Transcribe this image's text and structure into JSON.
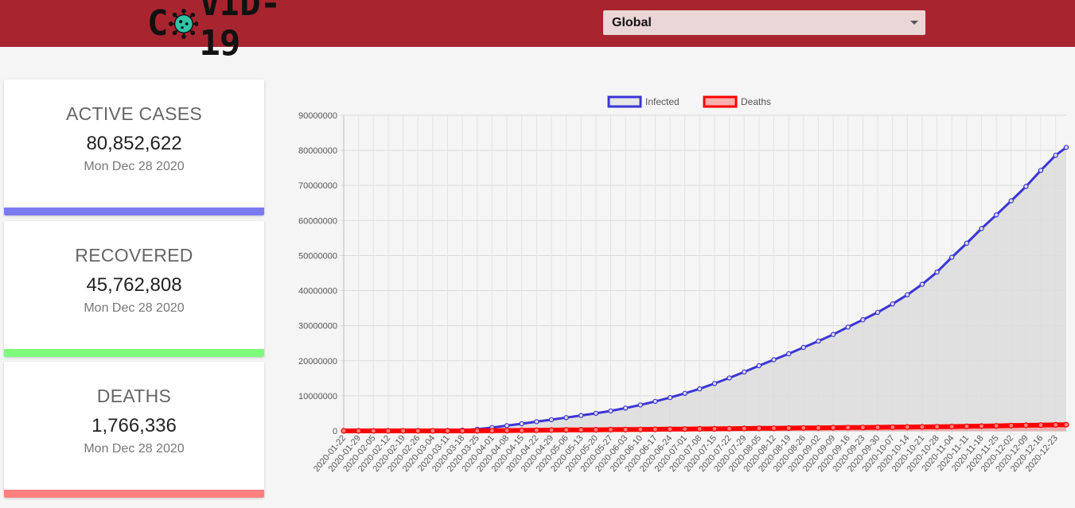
{
  "header": {
    "logo_text_left": "C",
    "logo_text_right": "VID-19",
    "logo_icon": "virus-icon",
    "region_select": {
      "value": "Global",
      "icon": "chevron-down-icon"
    }
  },
  "cards": [
    {
      "title": "ACTIVE CASES",
      "value": "80,852,622",
      "date": "Mon Dec 28 2020",
      "bar_color": "#7b7bf0"
    },
    {
      "title": "RECOVERED",
      "value": "45,762,808",
      "date": "Mon Dec 28 2020",
      "bar_color": "#7dfb7d"
    },
    {
      "title": "DEATHS",
      "value": "1,766,336",
      "date": "Mon Dec 28 2020",
      "bar_color": "#ff7f7f"
    }
  ],
  "chart_data": {
    "type": "line",
    "legend_position": "top",
    "grid": true,
    "ylim": [
      0,
      90000000
    ],
    "y_ticks": [
      "0",
      "10000000",
      "20000000",
      "30000000",
      "40000000",
      "50000000",
      "60000000",
      "70000000",
      "80000000",
      "90000000"
    ],
    "x_tick_labels": [
      "2020-01-22",
      "2020-01-29",
      "2020-02-05",
      "2020-02-12",
      "2020-02-19",
      "2020-02-26",
      "2020-03-04",
      "2020-03-11",
      "2020-03-18",
      "2020-03-25",
      "2020-04-01",
      "2020-04-08",
      "2020-04-15",
      "2020-04-22",
      "2020-04-29",
      "2020-05-06",
      "2020-05-13",
      "2020-05-20",
      "2020-05-27",
      "2020-06-03",
      "2020-06-10",
      "2020-06-17",
      "2020-06-24",
      "2020-07-01",
      "2020-07-08",
      "2020-07-15",
      "2020-07-22",
      "2020-07-29",
      "2020-08-05",
      "2020-08-12",
      "2020-08-19",
      "2020-08-26",
      "2020-09-02",
      "2020-09-09",
      "2020-09-16",
      "2020-09-23",
      "2020-09-30",
      "2020-10-07",
      "2020-10-14",
      "2020-10-21",
      "2020-10-28",
      "2020-11-04",
      "2020-11-11",
      "2020-11-18",
      "2020-11-25",
      "2020-12-02",
      "2020-12-09",
      "2020-12-16",
      "2020-12-23"
    ],
    "x": [
      "2020-01-22",
      "2020-01-29",
      "2020-02-05",
      "2020-02-12",
      "2020-02-19",
      "2020-02-26",
      "2020-03-04",
      "2020-03-11",
      "2020-03-18",
      "2020-03-25",
      "2020-04-01",
      "2020-04-08",
      "2020-04-15",
      "2020-04-22",
      "2020-04-29",
      "2020-05-06",
      "2020-05-13",
      "2020-05-20",
      "2020-05-27",
      "2020-06-03",
      "2020-06-10",
      "2020-06-17",
      "2020-06-24",
      "2020-07-01",
      "2020-07-08",
      "2020-07-15",
      "2020-07-22",
      "2020-07-29",
      "2020-08-05",
      "2020-08-12",
      "2020-08-19",
      "2020-08-26",
      "2020-09-02",
      "2020-09-09",
      "2020-09-16",
      "2020-09-23",
      "2020-09-30",
      "2020-10-07",
      "2020-10-14",
      "2020-10-21",
      "2020-10-28",
      "2020-11-04",
      "2020-11-11",
      "2020-11-18",
      "2020-11-25",
      "2020-12-02",
      "2020-12-09",
      "2020-12-16",
      "2020-12-23",
      "2020-12-28"
    ],
    "series": [
      {
        "name": "Infected",
        "color": "#3b35d6",
        "fill": "#dcdcdc",
        "values": [
          600,
          6000,
          28000,
          45000,
          76000,
          83000,
          95000,
          126000,
          215000,
          470000,
          930000,
          1500000,
          2050000,
          2640000,
          3200000,
          3790000,
          4400000,
          5000000,
          5700000,
          6500000,
          7400000,
          8400000,
          9500000,
          10700000,
          12000000,
          13500000,
          15100000,
          16800000,
          18600000,
          20300000,
          22000000,
          23800000,
          25600000,
          27500000,
          29600000,
          31700000,
          33800000,
          36200000,
          38800000,
          41800000,
          45300000,
          49500000,
          53500000,
          57700000,
          61600000,
          65600000,
          69700000,
          74300000,
          78600000,
          80852622
        ]
      },
      {
        "name": "Deaths",
        "color": "#ff0000",
        "fill": "#ff7f7f",
        "values": [
          17,
          170,
          560,
          1120,
          2120,
          2800,
          3400,
          4600,
          9200,
          21000,
          47000,
          89000,
          136000,
          183000,
          226000,
          264000,
          297000,
          326000,
          354000,
          385000,
          418000,
          452000,
          489000,
          526000,
          560000,
          594000,
          635000,
          673000,
          716000,
          752000,
          793000,
          838000,
          864000,
          904000,
          943000,
          978000,
          1012000,
          1060000,
          1100000,
          1130000,
          1173000,
          1225000,
          1290000,
          1360000,
          1433000,
          1510000,
          1580000,
          1655000,
          1730000,
          1766336
        ]
      }
    ]
  }
}
